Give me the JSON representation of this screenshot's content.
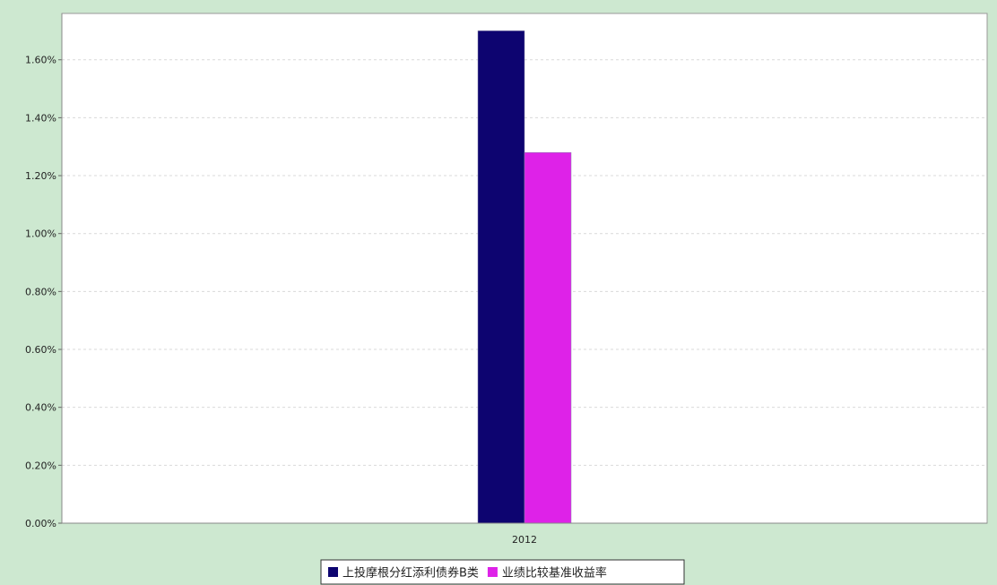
{
  "chart_data": {
    "type": "bar",
    "categories": [
      "2012"
    ],
    "series": [
      {
        "name": "上投摩根分红添利债券B类",
        "values": [
          1.7
        ],
        "color": "#0d0470"
      },
      {
        "name": "业绩比较基准收益率",
        "values": [
          1.28
        ],
        "color": "#de22e8"
      }
    ],
    "ylim": [
      0,
      1.76
    ],
    "yticks": [
      0.0,
      0.2,
      0.4,
      0.6,
      0.8,
      1.0,
      1.2,
      1.4,
      1.6
    ],
    "ytick_labels": [
      "0.00%",
      "0.20%",
      "0.40%",
      "0.60%",
      "0.80%",
      "1.00%",
      "1.20%",
      "1.40%",
      "1.60%"
    ],
    "grid": true,
    "legend_position": "bottom-center"
  },
  "colors": {
    "background": "#cde8d0",
    "plot_background": "#ffffff",
    "gridline": "#d9d9d9"
  }
}
